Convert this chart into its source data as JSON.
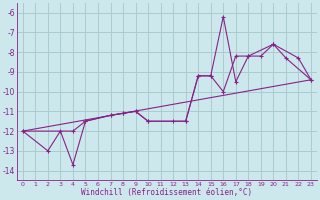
{
  "xlabel": "Windchill (Refroidissement éolien,°C)",
  "background_color": "#cce8ec",
  "grid_color": "#aacccc",
  "line_color": "#882288",
  "tick_color": "#882288",
  "xlim": [
    -0.5,
    23.5
  ],
  "ylim": [
    -14.5,
    -5.5
  ],
  "yticks": [
    -14,
    -13,
    -12,
    -11,
    -10,
    -9,
    -8,
    -7,
    -6
  ],
  "xticks": [
    0,
    1,
    2,
    3,
    4,
    5,
    6,
    7,
    8,
    9,
    10,
    11,
    12,
    13,
    14,
    15,
    16,
    17,
    18,
    19,
    20,
    21,
    22,
    23
  ],
  "line1": [
    [
      0,
      -12.0
    ],
    [
      2,
      -13.0
    ],
    [
      3,
      -12.0
    ],
    [
      4,
      -13.7
    ],
    [
      5,
      -11.5
    ],
    [
      7,
      -11.2
    ],
    [
      8,
      -11.1
    ],
    [
      9,
      -11.0
    ],
    [
      10,
      -11.5
    ],
    [
      12,
      -11.5
    ],
    [
      13,
      -11.5
    ],
    [
      14,
      -9.2
    ],
    [
      15,
      -9.2
    ],
    [
      16,
      -6.2
    ],
    [
      17,
      -9.5
    ],
    [
      18,
      -8.2
    ],
    [
      20,
      -7.6
    ],
    [
      21,
      -8.3
    ],
    [
      23,
      -9.4
    ]
  ],
  "line2": [
    [
      0,
      -12.0
    ],
    [
      4,
      -12.0
    ],
    [
      5,
      -11.5
    ],
    [
      7,
      -11.2
    ],
    [
      8,
      -11.1
    ],
    [
      9,
      -11.0
    ],
    [
      10,
      -11.5
    ],
    [
      13,
      -11.5
    ],
    [
      14,
      -9.2
    ],
    [
      15,
      -9.2
    ],
    [
      16,
      -10.0
    ],
    [
      17,
      -8.2
    ],
    [
      18,
      -8.2
    ],
    [
      19,
      -8.2
    ],
    [
      20,
      -7.6
    ],
    [
      22,
      -8.3
    ],
    [
      23,
      -9.4
    ]
  ],
  "line3": [
    [
      0,
      -12.0
    ],
    [
      23,
      -9.4
    ]
  ]
}
